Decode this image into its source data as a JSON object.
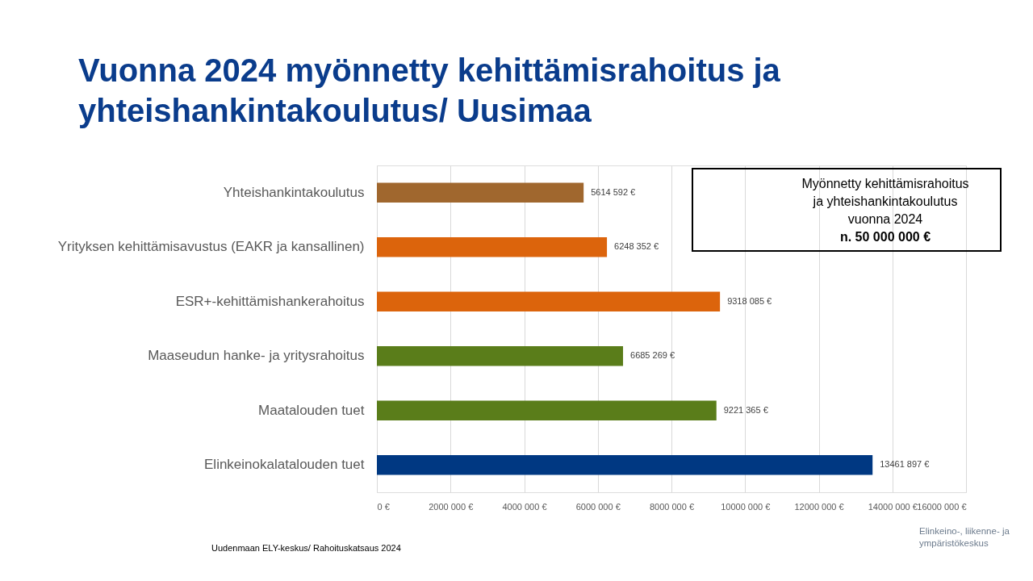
{
  "chart_data": {
    "type": "bar",
    "orientation": "horizontal",
    "title": "Vuonna 2024 myönnetty kehittämisrahoitus ja yhteishankintakoulutus/ Uusimaa",
    "categories": [
      "Yhteishankintakoulutus",
      "Yrityksen kehittämisavustus (EAKR ja kansallinen)",
      "ESR+-kehittämishankerahoitus",
      "Maaseudun hanke- ja yritysrahoitus",
      "Maatalouden tuet",
      "Elinkeinokalatalouden tuet"
    ],
    "values": [
      5614592,
      6248352,
      9318085,
      6685269,
      9221365,
      13461897
    ],
    "colors": [
      "#a0672e",
      "#dc640c",
      "#dc640c",
      "#5a7d1a",
      "#5a7d1a",
      "#003882"
    ],
    "value_labels": [
      "5614 592 €",
      "6248 352 €",
      "9318 085 €",
      "6685 269 €",
      "9221 365 €",
      "13461 897 €"
    ],
    "xlim": [
      0,
      16000000
    ],
    "xticks": [
      {
        "value": 0,
        "label": "0 €"
      },
      {
        "value": 2000000,
        "label": "2000 000 €"
      },
      {
        "value": 4000000,
        "label": "4000 000 €"
      },
      {
        "value": 6000000,
        "label": "6000 000 €"
      },
      {
        "value": 8000000,
        "label": "8000 000 €"
      },
      {
        "value": 10000000,
        "label": "10000 000 €"
      },
      {
        "value": 12000000,
        "label": "12000 000 €"
      },
      {
        "value": 14000000,
        "label": "14000 000 €"
      },
      {
        "value": 16000000,
        "label": "16000 000 €"
      }
    ],
    "grid": "x",
    "legend": false,
    "annotations": [
      "Uudenmaan ELY-keskus/ Rahoituskatsaus 2024",
      "Myönnetty kehittämisrahoitus ja yhteishankintakoulutus vuonna 2024",
      "n. 50 000 000 €",
      "Elinkeino-, liikenne- ja ympäristökeskus"
    ]
  }
}
